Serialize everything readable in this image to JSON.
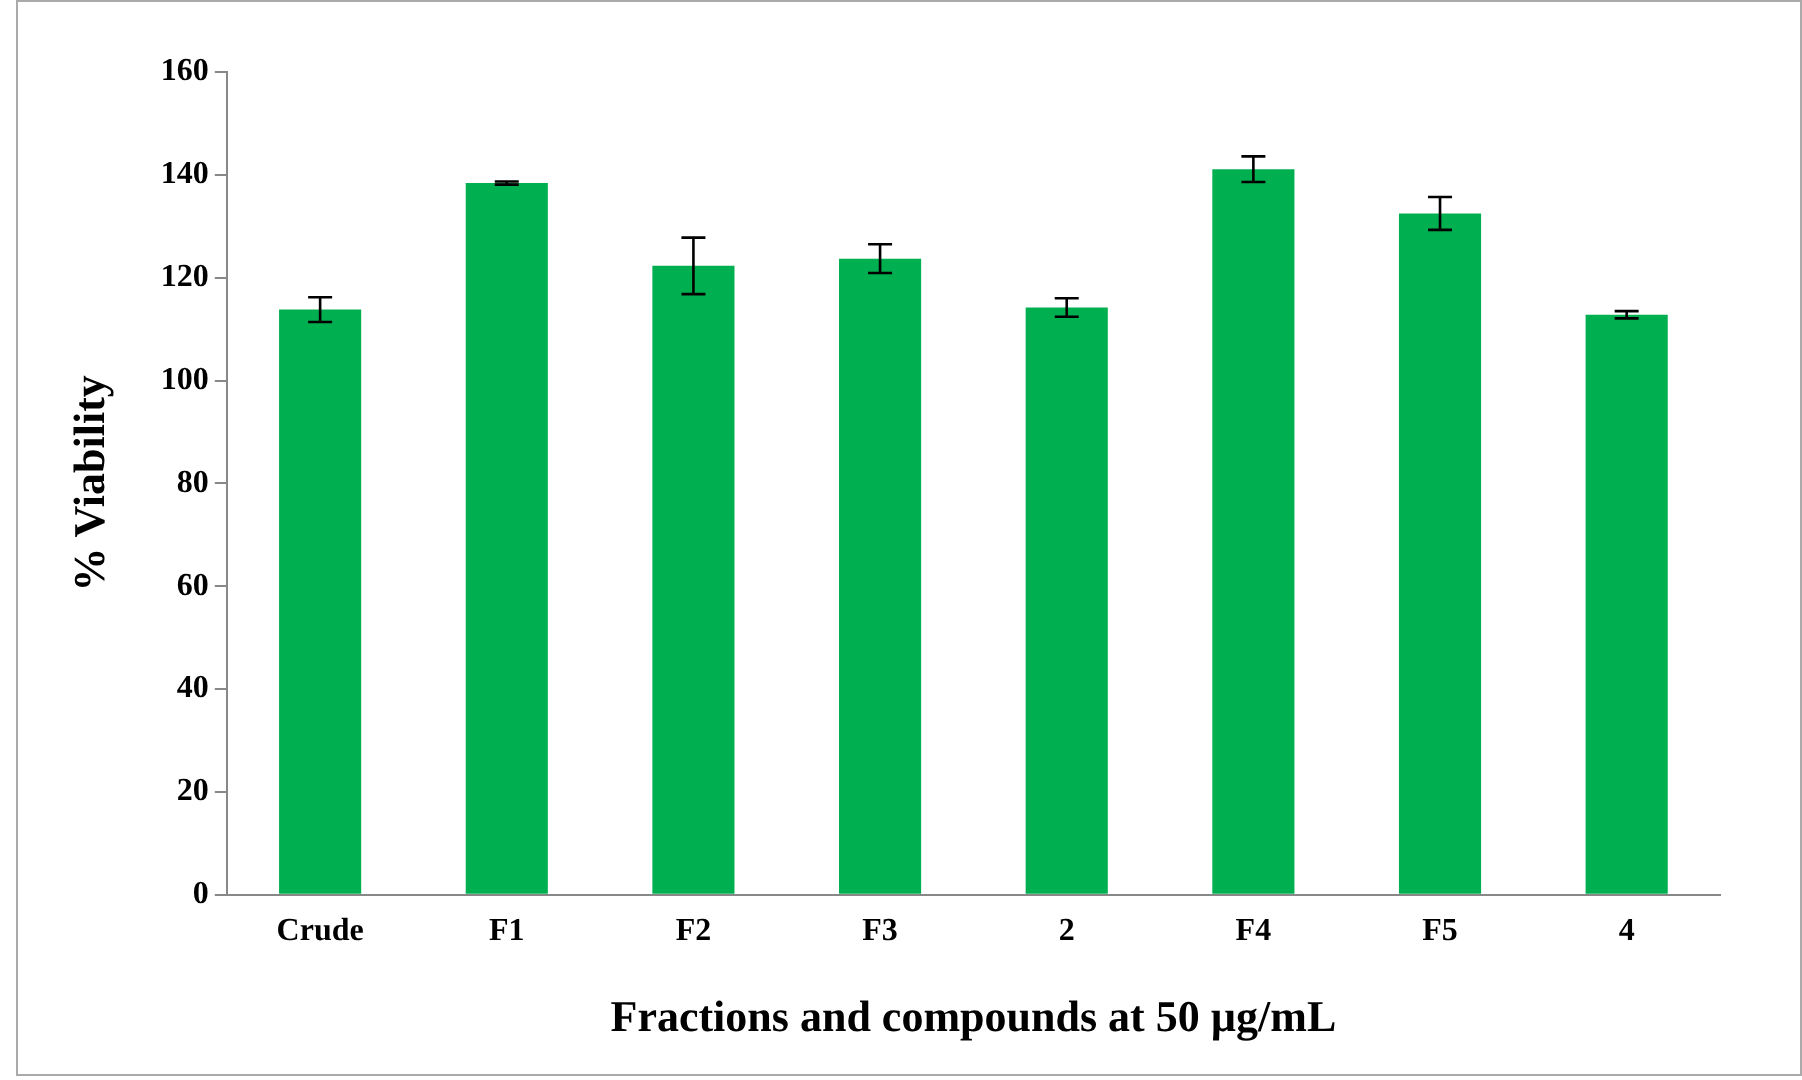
{
  "chart_data": {
    "type": "bar",
    "xlabel": "Fractions and compounds at 50 µg/mL",
    "ylabel": "% Viability",
    "categories": [
      "Crude",
      "F1",
      "F2",
      "F3",
      "2",
      "F4",
      "F5",
      "4"
    ],
    "values": [
      113.8,
      138.4,
      122.3,
      123.7,
      114.2,
      141.1,
      132.5,
      112.8
    ],
    "errors": [
      2.4,
      0.3,
      5.5,
      2.8,
      1.8,
      2.5,
      3.2,
      0.7
    ],
    "color": "#00b050",
    "ylim": [
      0,
      160
    ],
    "yticks": [
      0,
      20,
      40,
      60,
      80,
      100,
      120,
      140,
      160
    ],
    "grid": false,
    "legend": false
  }
}
